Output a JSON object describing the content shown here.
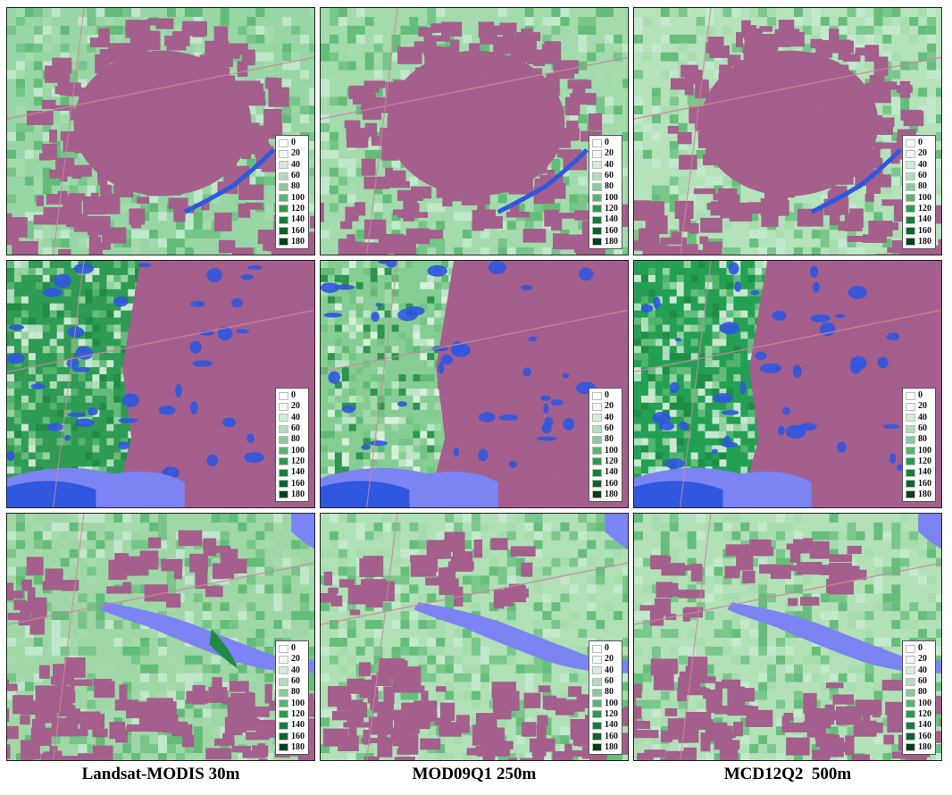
{
  "column_labels": [
    "Landsat-MODIS 30m",
    "MOD09Q1 250m",
    "MCD12Q2  500m"
  ],
  "legend": {
    "values": [
      "0",
      "20",
      "40",
      "60",
      "80",
      "100",
      "120",
      "140",
      "160",
      "180"
    ],
    "colors": [
      "#ffffff",
      "#f2f8f3",
      "#d3ecd8",
      "#b1ddb9",
      "#87cb95",
      "#56b56d",
      "#2a9b4b",
      "#13803a",
      "#0a652d",
      "#043f1c"
    ]
  },
  "colors": {
    "urban": "#a45f8c",
    "water": "#2f57df",
    "water_light": "#7c83f2",
    "vegetation_light": "#a6dcad",
    "vegetation_mid": "#70c283",
    "vegetation_dark": "#1f8a43"
  }
}
